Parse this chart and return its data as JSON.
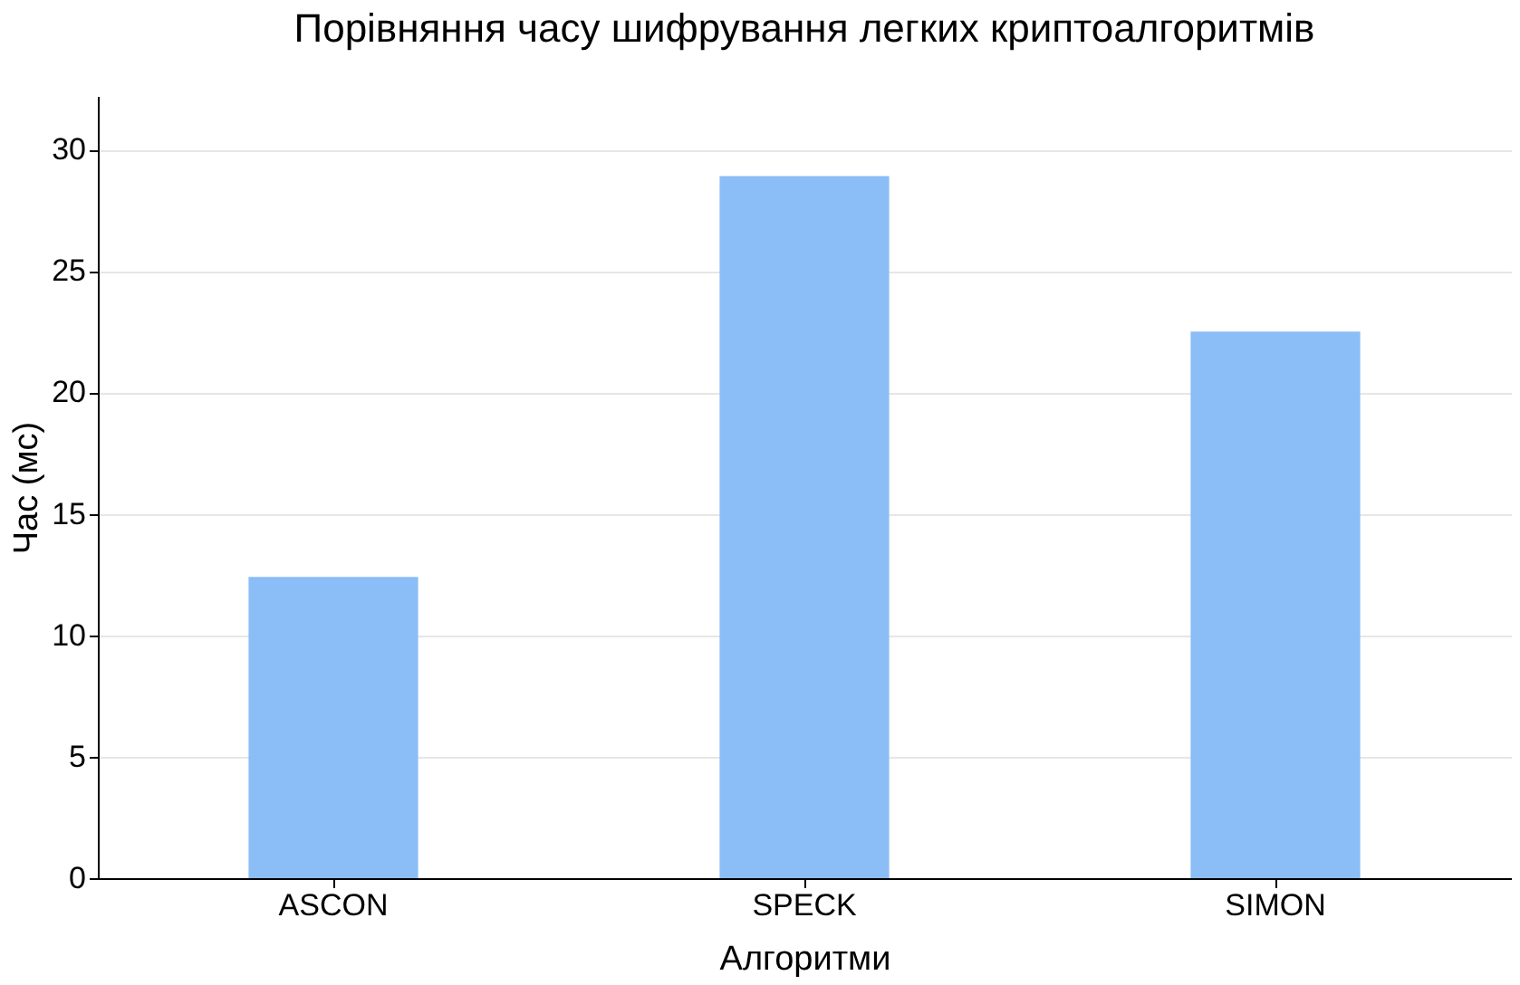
{
  "chart_data": {
    "type": "bar",
    "title": "Порівняння часу шифрування легких криптоалгоритмів",
    "xlabel": "Алгоритми",
    "ylabel": "Час (мс)",
    "categories": [
      "ASCON",
      "SPECK",
      "SIMON"
    ],
    "values": [
      12.4,
      28.9,
      22.5
    ],
    "color": "#8bbdf6",
    "ylim": [
      0,
      32.2
    ],
    "yticks": [
      0,
      5,
      10,
      15,
      20,
      25,
      30
    ],
    "grid": "y"
  }
}
